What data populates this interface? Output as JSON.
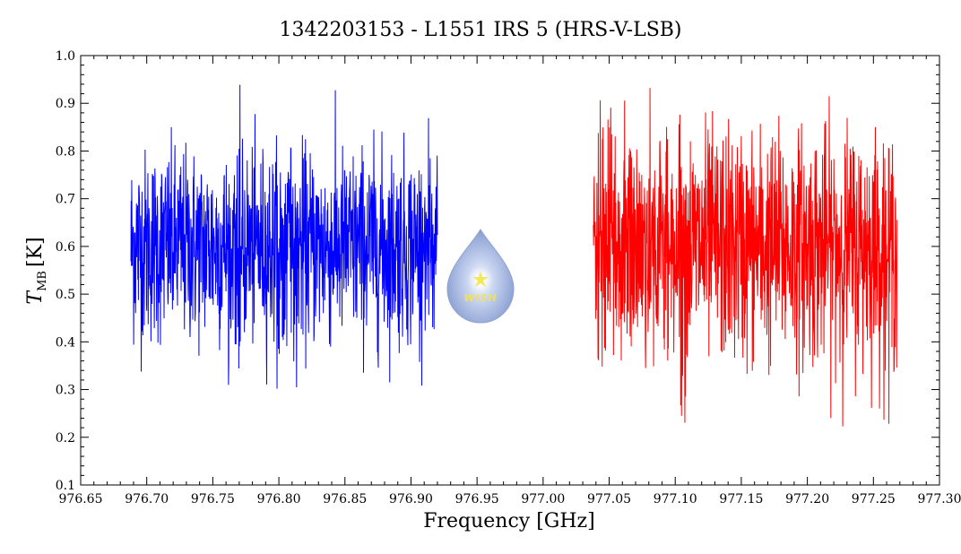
{
  "chart_data": {
    "type": "line",
    "title": "1342203153 - L1551 IRS 5 (HRS-V-LSB)",
    "xlabel": "Frequency [GHz]",
    "ylabel_main": "T",
    "ylabel_sub": "MB",
    "ylabel_unit": "[K]",
    "xlim": [
      976.65,
      977.3
    ],
    "ylim": [
      0.1,
      1.0
    ],
    "x_ticks": [
      976.65,
      976.7,
      976.75,
      976.8,
      976.85,
      976.9,
      976.95,
      977.0,
      977.05,
      977.1,
      977.15,
      977.2,
      977.25,
      977.3
    ],
    "x_tick_labels": [
      "976.65",
      "976.70",
      "976.75",
      "976.80",
      "976.85",
      "976.90",
      "976.95",
      "977.00",
      "977.05",
      "977.10",
      "977.15",
      "977.20",
      "977.25",
      "977.30"
    ],
    "y_ticks": [
      0.1,
      0.2,
      0.3,
      0.4,
      0.5,
      0.6,
      0.7,
      0.8,
      0.9,
      1.0
    ],
    "y_tick_labels": [
      "0.1",
      "0.2",
      "0.3",
      "0.4",
      "0.5",
      "0.6",
      "0.7",
      "0.8",
      "0.9",
      "1.0"
    ],
    "grid": false,
    "series": [
      {
        "color": "#0000ff",
        "x_range": [
          976.688,
          976.92
        ],
        "mean": 0.6,
        "spread": 0.1,
        "min": 0.3,
        "max": 0.94
      },
      {
        "color": "#ff0000",
        "x_range": [
          977.038,
          977.268
        ],
        "mean": 0.6,
        "spread": 0.12,
        "min": 0.22,
        "max": 0.97
      }
    ],
    "logo_text": "WISH",
    "logo_colors": {
      "drop": "#9fb3dd",
      "star": "#f5e75a",
      "text": "#f0e060"
    }
  }
}
